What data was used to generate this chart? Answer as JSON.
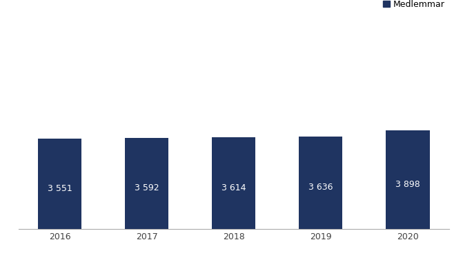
{
  "categories": [
    "2016",
    "2017",
    "2018",
    "2019",
    "2020"
  ],
  "values": [
    3551,
    3592,
    3614,
    3636,
    3898
  ],
  "labels": [
    "3 551",
    "3 592",
    "3 614",
    "3 636",
    "3 898"
  ],
  "bar_color": "#1F3461",
  "legend_label": "Medlemmar",
  "legend_marker_color": "#1F3461",
  "background_color": "#ffffff",
  "ylim": [
    0,
    7800
  ],
  "label_fontsize": 9,
  "tick_fontsize": 9,
  "legend_fontsize": 9,
  "label_color": "#ffffff",
  "tick_color": "#404040",
  "bar_width": 0.5
}
